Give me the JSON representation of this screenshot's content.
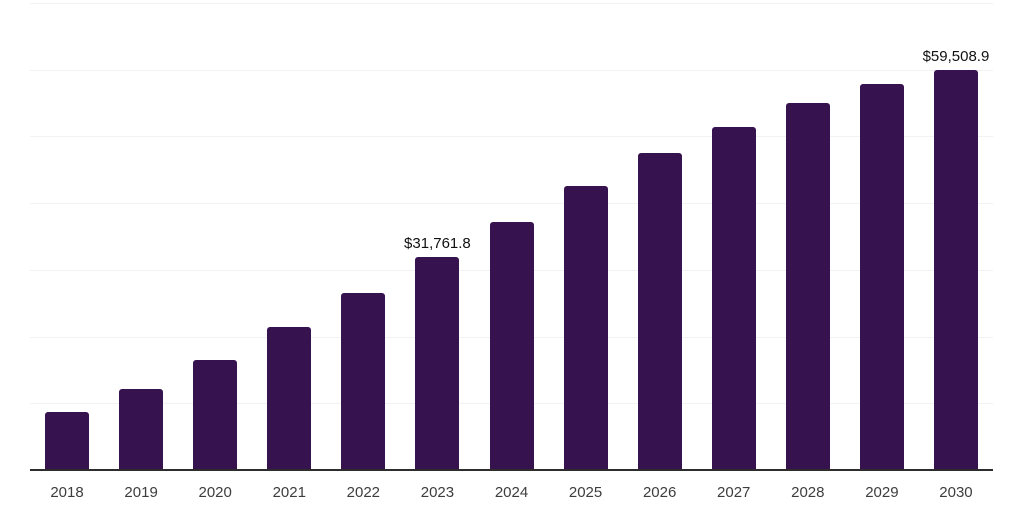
{
  "chart_data": {
    "type": "bar",
    "categories": [
      "2018",
      "2019",
      "2020",
      "2021",
      "2022",
      "2023",
      "2024",
      "2025",
      "2026",
      "2027",
      "2028",
      "2029",
      "2030"
    ],
    "values": [
      8600,
      12100,
      16400,
      21300,
      26400,
      31761.8,
      36900,
      42300,
      47200,
      51100,
      54600,
      57500,
      59508.9
    ],
    "point_labels": [
      "",
      "",
      "",
      "",
      "",
      "$31,761.8",
      "",
      "",
      "",
      "",
      "",
      "",
      "$59,508.9"
    ],
    "title": "",
    "xlabel": "",
    "ylabel": "",
    "ylim": [
      0,
      70000
    ],
    "grid_interval": 10000,
    "grid": true,
    "legend": false,
    "y_tick_labels_visible": false,
    "colors": {
      "bar": "#36124f",
      "gridline": "#f2f2f2",
      "axis": "#2d2d2d",
      "category_label": "#3d3d3d",
      "value_label": "#111111",
      "background": "#ffffff"
    }
  }
}
